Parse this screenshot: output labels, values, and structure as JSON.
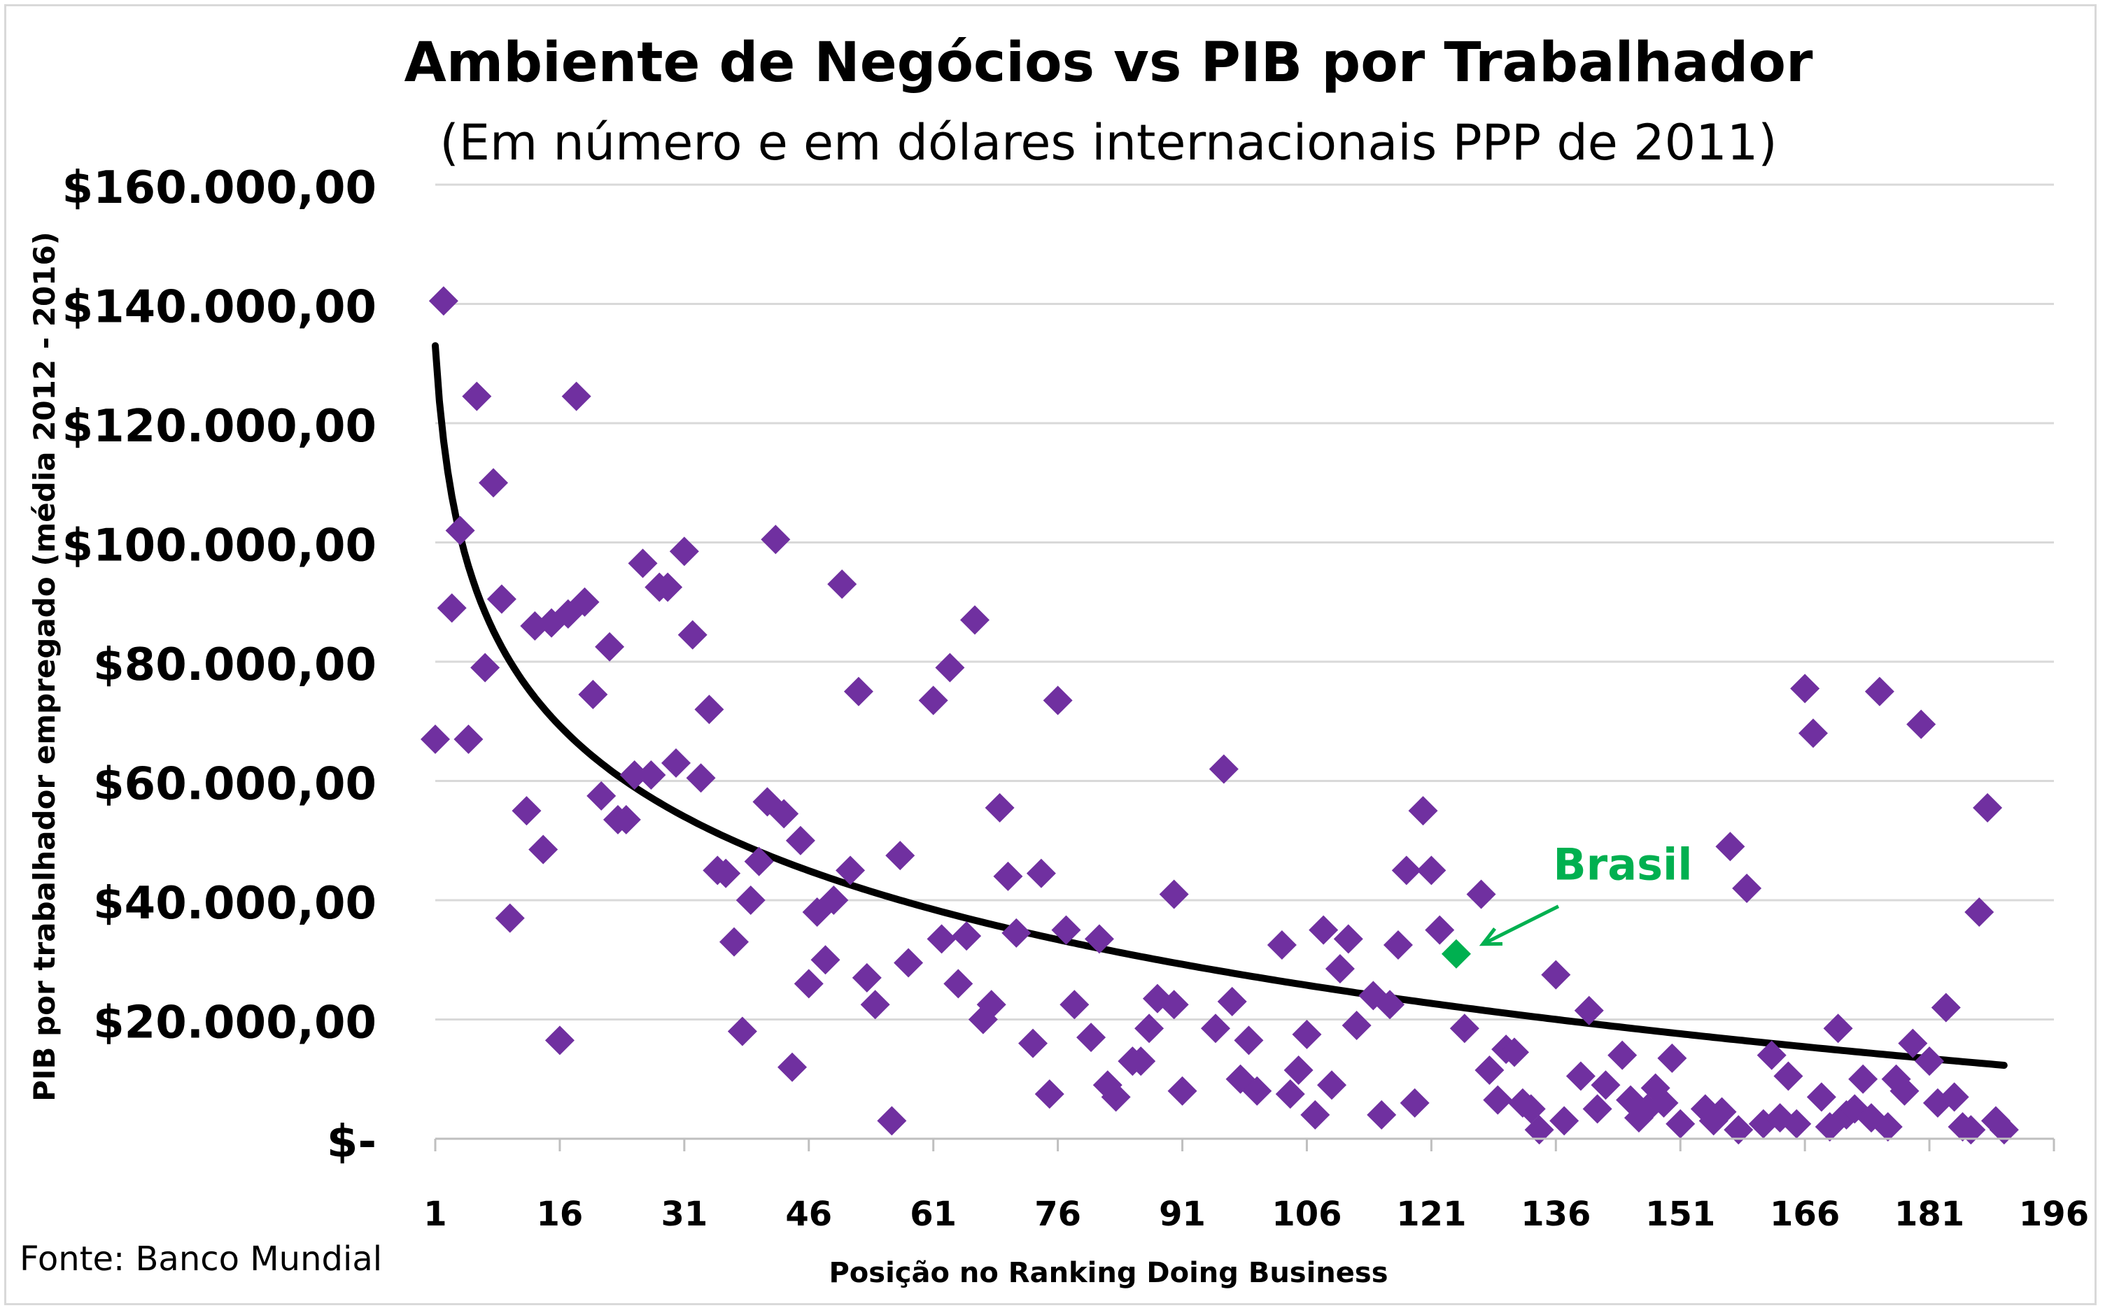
{
  "source_note": "Fonte: Banco Mundial",
  "highlight": {
    "label": "Brasil",
    "x": 124,
    "y": 31000,
    "color": "#00b050"
  },
  "colors": {
    "points": "#7030a0",
    "trend": "#000000",
    "grid": "#d9d9d9",
    "highlight": "#00b050"
  },
  "chart_data": {
    "type": "scatter",
    "title": "Ambiente de Negócios vs PIB por Trabalhador",
    "subtitle": "(Em número e em dólares internacionais PPP de 2011)",
    "xlabel": "Posição no Ranking Doing Business",
    "ylabel": "PIB por trabalhador empregado (média 2012 - 2016)",
    "xlim": [
      1,
      196
    ],
    "ylim": [
      0,
      160000
    ],
    "xticks": [
      1,
      16,
      31,
      46,
      61,
      76,
      91,
      106,
      121,
      136,
      151,
      166,
      181,
      196
    ],
    "xtick_labels": [
      "1",
      "16",
      "31",
      "46",
      "61",
      "76",
      "91",
      "106",
      "121",
      "136",
      "151",
      "166",
      "181",
      "196"
    ],
    "yticks": [
      0,
      20000,
      40000,
      60000,
      80000,
      100000,
      120000,
      140000,
      160000
    ],
    "ytick_labels": [
      "$-",
      "$20.000,00",
      "$40.000,00",
      "$60.000,00",
      "$80.000,00",
      "$100.000,00",
      "$120.000,00",
      "$140.000,00",
      "$160.000,00"
    ],
    "grid": true,
    "trendline": {
      "type": "logarithmic",
      "formula": "y = a + b*ln(x)",
      "a": 133000,
      "b": -23000,
      "x_range": [
        1,
        190
      ]
    },
    "points": [
      [
        1,
        67000
      ],
      [
        2,
        140500
      ],
      [
        3,
        89000
      ],
      [
        4,
        102000
      ],
      [
        5,
        67000
      ],
      [
        6,
        124500
      ],
      [
        7,
        79000
      ],
      [
        8,
        110000
      ],
      [
        9,
        90500
      ],
      [
        10,
        37000
      ],
      [
        12,
        55000
      ],
      [
        13,
        86000
      ],
      [
        14,
        48500
      ],
      [
        15,
        86500
      ],
      [
        16,
        16500
      ],
      [
        17,
        88000
      ],
      [
        18,
        124500
      ],
      [
        19,
        90000
      ],
      [
        20,
        74500
      ],
      [
        21,
        57500
      ],
      [
        22,
        82500
      ],
      [
        23,
        53500
      ],
      [
        24,
        53500
      ],
      [
        25,
        61000
      ],
      [
        26,
        96500
      ],
      [
        27,
        61000
      ],
      [
        28,
        92500
      ],
      [
        29,
        92500
      ],
      [
        30,
        63000
      ],
      [
        31,
        98500
      ],
      [
        32,
        84500
      ],
      [
        33,
        60500
      ],
      [
        34,
        72000
      ],
      [
        35,
        45000
      ],
      [
        36,
        44500
      ],
      [
        37,
        33000
      ],
      [
        38,
        18000
      ],
      [
        39,
        40000
      ],
      [
        40,
        46500
      ],
      [
        41,
        56500
      ],
      [
        42,
        100500
      ],
      [
        43,
        54500
      ],
      [
        44,
        12000
      ],
      [
        45,
        50000
      ],
      [
        46,
        26000
      ],
      [
        47,
        38000
      ],
      [
        48,
        30000
      ],
      [
        49,
        40000
      ],
      [
        50,
        93000
      ],
      [
        51,
        45000
      ],
      [
        52,
        75000
      ],
      [
        53,
        27000
      ],
      [
        54,
        22500
      ],
      [
        56,
        3000
      ],
      [
        57,
        47500
      ],
      [
        58,
        29500
      ],
      [
        61,
        73500
      ],
      [
        62,
        33500
      ],
      [
        63,
        79000
      ],
      [
        64,
        26000
      ],
      [
        65,
        34000
      ],
      [
        66,
        87000
      ],
      [
        67,
        20000
      ],
      [
        68,
        22500
      ],
      [
        69,
        55500
      ],
      [
        70,
        44000
      ],
      [
        71,
        34500
      ],
      [
        73,
        16000
      ],
      [
        74,
        44500
      ],
      [
        75,
        7500
      ],
      [
        76,
        73500
      ],
      [
        77,
        35000
      ],
      [
        78,
        22500
      ],
      [
        80,
        17000
      ],
      [
        81,
        33500
      ],
      [
        82,
        9000
      ],
      [
        83,
        7000
      ],
      [
        85,
        13000
      ],
      [
        86,
        13000
      ],
      [
        87,
        18500
      ],
      [
        88,
        23500
      ],
      [
        90,
        22500
      ],
      [
        90,
        41000
      ],
      [
        91,
        8000
      ],
      [
        95,
        18500
      ],
      [
        96,
        62000
      ],
      [
        97,
        23000
      ],
      [
        98,
        10000
      ],
      [
        99,
        16500
      ],
      [
        100,
        8000
      ],
      [
        103,
        32500
      ],
      [
        104,
        7500
      ],
      [
        105,
        11500
      ],
      [
        106,
        17500
      ],
      [
        107,
        4000
      ],
      [
        108,
        35000
      ],
      [
        109,
        9000
      ],
      [
        110,
        28500
      ],
      [
        111,
        33500
      ],
      [
        112,
        19000
      ],
      [
        114,
        24000
      ],
      [
        115,
        4000
      ],
      [
        116,
        22500
      ],
      [
        117,
        32500
      ],
      [
        118,
        45000
      ],
      [
        119,
        6000
      ],
      [
        120,
        55000
      ],
      [
        121,
        45000
      ],
      [
        122,
        35000
      ],
      [
        125,
        18500
      ],
      [
        127,
        41000
      ],
      [
        128,
        11500
      ],
      [
        129,
        6500
      ],
      [
        130,
        15000
      ],
      [
        131,
        14500
      ],
      [
        132,
        6000
      ],
      [
        133,
        5000
      ],
      [
        134,
        1500
      ],
      [
        136,
        27500
      ],
      [
        137,
        3000
      ],
      [
        139,
        10500
      ],
      [
        140,
        21500
      ],
      [
        141,
        5000
      ],
      [
        142,
        9000
      ],
      [
        144,
        14000
      ],
      [
        145,
        6500
      ],
      [
        146,
        3500
      ],
      [
        147,
        5000
      ],
      [
        148,
        8500
      ],
      [
        149,
        6000
      ],
      [
        150,
        13500
      ],
      [
        151,
        2500
      ],
      [
        154,
        5000
      ],
      [
        155,
        3000
      ],
      [
        156,
        4500
      ],
      [
        157,
        49000
      ],
      [
        158,
        1500
      ],
      [
        159,
        42000
      ],
      [
        161,
        2500
      ],
      [
        162,
        14000
      ],
      [
        163,
        3500
      ],
      [
        164,
        10500
      ],
      [
        165,
        2500
      ],
      [
        166,
        75500
      ],
      [
        167,
        68000
      ],
      [
        168,
        7000
      ],
      [
        169,
        2000
      ],
      [
        170,
        18500
      ],
      [
        171,
        4000
      ],
      [
        172,
        5000
      ],
      [
        173,
        10000
      ],
      [
        174,
        3500
      ],
      [
        175,
        75000
      ],
      [
        176,
        2000
      ],
      [
        177,
        10000
      ],
      [
        178,
        8000
      ],
      [
        179,
        16000
      ],
      [
        180,
        69500
      ],
      [
        181,
        13000
      ],
      [
        182,
        6000
      ],
      [
        183,
        22000
      ],
      [
        184,
        7000
      ],
      [
        185,
        2000
      ],
      [
        186,
        1500
      ],
      [
        187,
        38000
      ],
      [
        188,
        55500
      ],
      [
        189,
        3000
      ],
      [
        190,
        1500
      ]
    ]
  }
}
